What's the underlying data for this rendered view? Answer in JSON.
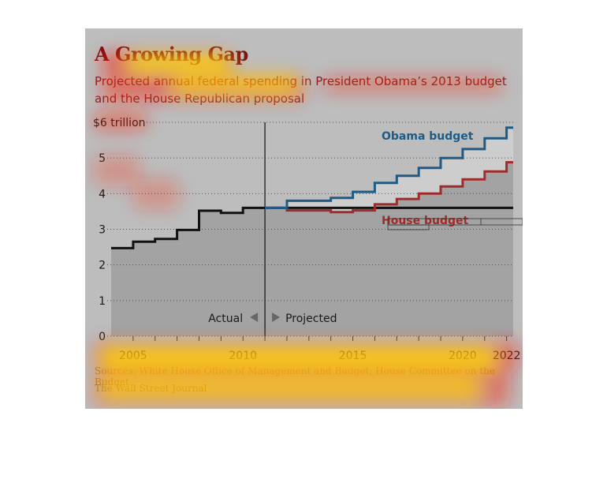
{
  "chart_data": {
    "type": "line",
    "title": "A Growing Gap",
    "subtitle": "Projected annual federal spending in President Obama’s 2013 budget and the House Republican proposal",
    "ylim": [
      0,
      6
    ],
    "xlim": [
      2004,
      2022.3
    ],
    "y_ticks": [
      0,
      1,
      2,
      3,
      4,
      5,
      6
    ],
    "y_tick_labels": [
      "0",
      "1",
      "2",
      "3",
      "4",
      "5",
      "$6 trillion"
    ],
    "x_ticks": [
      2005,
      2010,
      2015,
      2020,
      2022
    ],
    "x_tick_labels": [
      "2005",
      "2010",
      "2015",
      "2020",
      "2022"
    ],
    "grid": "horizontal dotted",
    "divider_year": 2011,
    "divider_labels": {
      "left": "Actual",
      "right": "Projected"
    },
    "series": [
      {
        "name": "Actual",
        "color": "#111111",
        "x": [
          2004,
          2005,
          2006,
          2007,
          2008,
          2009,
          2010,
          2011
        ],
        "values": [
          2.47,
          2.65,
          2.73,
          2.98,
          3.52,
          3.46,
          3.6,
          3.6
        ]
      },
      {
        "name": "Obama budget",
        "color": "#1f5b84",
        "x": [
          2011,
          2012,
          2013,
          2014,
          2015,
          2016,
          2017,
          2018,
          2019,
          2020,
          2021,
          2022
        ],
        "values": [
          3.6,
          3.8,
          3.8,
          3.88,
          4.05,
          4.3,
          4.5,
          4.72,
          5.0,
          5.25,
          5.55,
          5.85
        ]
      },
      {
        "name": "House budget",
        "color": "#a12a2a",
        "x": [
          2011,
          2012,
          2013,
          2014,
          2015,
          2016,
          2017,
          2018,
          2019,
          2020,
          2021,
          2022
        ],
        "values": [
          3.6,
          3.53,
          3.53,
          3.48,
          3.53,
          3.7,
          3.85,
          4.0,
          4.2,
          4.4,
          4.62,
          4.88
        ]
      }
    ]
  },
  "footer": {
    "source": "Sources: White House Office of Management and Budget; House Committee on the Budget",
    "credit": "The Wall Street Journal"
  },
  "colors": {
    "panel": "#bdbdbd",
    "plot_fill": "#a3a3a3",
    "gap_fill": "#cdcdcd",
    "heat_yellow": "#ffe600",
    "heat_red": "#ff1a00"
  }
}
